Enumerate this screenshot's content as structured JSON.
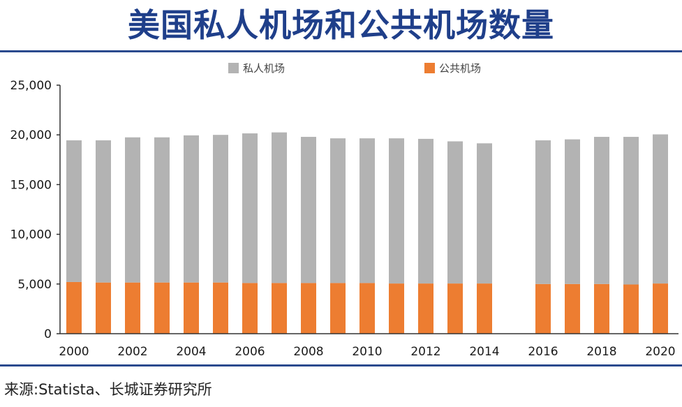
{
  "header": {
    "title": "美国私人机场和公共机场数量"
  },
  "footer": {
    "source": "来源:Statista、长城证券研究所"
  },
  "colors": {
    "private": "#b3b3b3",
    "public": "#ed7d31",
    "axis": "#333333",
    "rule": "#2a4a8e",
    "title": "#1f3f8a"
  },
  "chart_data": {
    "type": "bar",
    "stacked": true,
    "title": "美国私人机场和公共机场数量",
    "xlabel": "",
    "ylabel": "",
    "ylim": [
      0,
      25000
    ],
    "yticks": [
      0,
      5000,
      10000,
      15000,
      20000,
      25000
    ],
    "ytick_labels": [
      "0",
      "5,000",
      "10,000",
      "15,000",
      "20,000",
      "25,000"
    ],
    "categories": [
      "2000",
      "2001",
      "2002",
      "2003",
      "2004",
      "2005",
      "2006",
      "2007",
      "2008",
      "2009",
      "2010",
      "2011",
      "2012",
      "2013",
      "2014",
      "2015",
      "2016",
      "2017",
      "2018",
      "2019",
      "2020"
    ],
    "xtick_labels": [
      "2000",
      "2002",
      "2004",
      "2006",
      "2008",
      "2010",
      "2012",
      "2014",
      "2016",
      "2018",
      "2020"
    ],
    "legend": {
      "position": "top",
      "entries": [
        "私人机场",
        "公共机场"
      ]
    },
    "grid": false,
    "series": [
      {
        "name": "公共机场",
        "values": [
          5200,
          5150,
          5150,
          5150,
          5150,
          5150,
          5100,
          5100,
          5100,
          5100,
          5100,
          5050,
          5050,
          5050,
          5050,
          null,
          5000,
          5000,
          5000,
          4950,
          5050
        ]
      },
      {
        "name": "私人机场",
        "values": [
          14250,
          14300,
          14600,
          14600,
          14800,
          14850,
          15050,
          15150,
          14700,
          14550,
          14550,
          14600,
          14550,
          14300,
          14100,
          null,
          14450,
          14550,
          14800,
          14850,
          15000
        ]
      }
    ]
  }
}
